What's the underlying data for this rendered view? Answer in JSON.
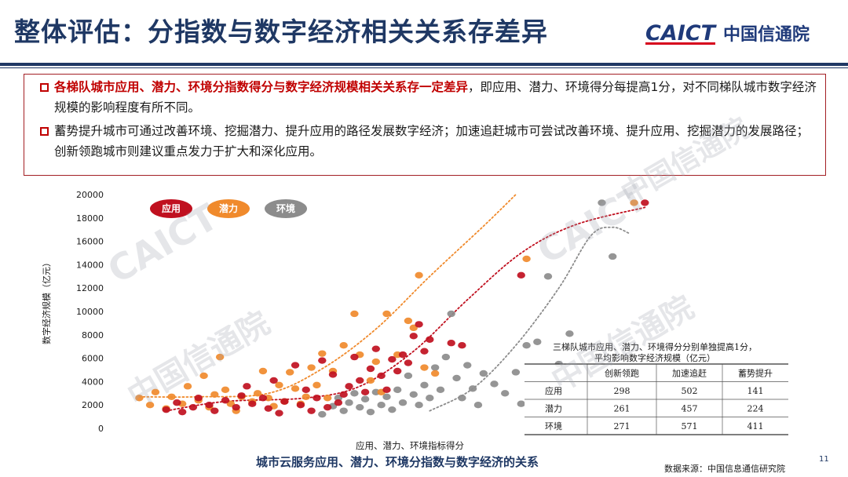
{
  "header": {
    "title": "整体评估：分指数与数字经济相关关系存差异",
    "logo_mark": "CAICT",
    "logo_name": "中国信通院"
  },
  "bullets": [
    {
      "highlight": "各梯队城市应用、潜力、环境分指数得分与数字经济规模相关关系存一定差异",
      "text": "，即应用、潜力、环境得分每提高1分，对不同梯队城市数字经济规模的影响程度有所不同。"
    },
    {
      "highlight": "",
      "text": "蓄势提升城市可通过改善环境、挖掘潜力、提升应用的路径发展数字经济；加速追赶城市可尝试改善环境、提升应用、挖掘潜力的发展路径；创新领跑城市则建议重点发力于扩大和深化应用。"
    }
  ],
  "chart_data": {
    "type": "scatter",
    "title": "城市云服务应用、潜力、环境分指数与数字经济的关系",
    "xlabel": "应用、潜力、环境指标得分",
    "ylabel": "数字经济规模（亿元）",
    "ylim": [
      0,
      20000
    ],
    "yticks": [
      0,
      2000,
      4000,
      6000,
      8000,
      10000,
      12000,
      14000,
      16000,
      18000,
      20000
    ],
    "xlim": [
      0,
      100
    ],
    "legend_position": "top-left",
    "grid": false,
    "series": [
      {
        "name": "应用",
        "color": "#c0101f",
        "points": [
          [
            9,
            1600
          ],
          [
            11,
            2200
          ],
          [
            12,
            1400
          ],
          [
            14,
            1800
          ],
          [
            15,
            2600
          ],
          [
            17,
            2000
          ],
          [
            18,
            1500
          ],
          [
            20,
            2400
          ],
          [
            22,
            1800
          ],
          [
            23,
            2800
          ],
          [
            24,
            3600
          ],
          [
            25,
            2100
          ],
          [
            27,
            2600
          ],
          [
            28,
            1700
          ],
          [
            29,
            4100
          ],
          [
            30,
            1300
          ],
          [
            31,
            2300
          ],
          [
            33,
            5400
          ],
          [
            34,
            2000
          ],
          [
            35,
            3300
          ],
          [
            36,
            1500
          ],
          [
            37,
            2600
          ],
          [
            38,
            5800
          ],
          [
            39,
            1800
          ],
          [
            40,
            4600
          ],
          [
            41,
            2200
          ],
          [
            42,
            2900
          ],
          [
            43,
            3600
          ],
          [
            44,
            6100
          ],
          [
            45,
            4100
          ],
          [
            46,
            3100
          ],
          [
            47,
            5100
          ],
          [
            48,
            6800
          ],
          [
            49,
            4500
          ],
          [
            50,
            3300
          ],
          [
            51,
            5900
          ],
          [
            52,
            4900
          ],
          [
            53,
            6300
          ],
          [
            54,
            5600
          ],
          [
            55,
            7900
          ],
          [
            56,
            8900
          ],
          [
            57,
            6600
          ],
          [
            58,
            7600
          ],
          [
            62,
            7300
          ],
          [
            64,
            7100
          ],
          [
            75,
            13100
          ],
          [
            98,
            19300
          ]
        ]
      },
      {
        "name": "潜力",
        "color": "#f08a2c",
        "points": [
          [
            4,
            2600
          ],
          [
            6,
            2000
          ],
          [
            7,
            3100
          ],
          [
            9,
            1700
          ],
          [
            10,
            2700
          ],
          [
            12,
            2100
          ],
          [
            13,
            3600
          ],
          [
            15,
            2400
          ],
          [
            16,
            4500
          ],
          [
            17,
            1800
          ],
          [
            18,
            2900
          ],
          [
            19,
            6100
          ],
          [
            20,
            3300
          ],
          [
            21,
            2100
          ],
          [
            22,
            1500
          ],
          [
            23,
            2700
          ],
          [
            25,
            2300
          ],
          [
            26,
            3000
          ],
          [
            27,
            4900
          ],
          [
            28,
            2600
          ],
          [
            29,
            1900
          ],
          [
            30,
            3700
          ],
          [
            31,
            2300
          ],
          [
            32,
            4800
          ],
          [
            33,
            3400
          ],
          [
            34,
            2100
          ],
          [
            35,
            2700
          ],
          [
            36,
            5200
          ],
          [
            37,
            3700
          ],
          [
            38,
            6400
          ],
          [
            39,
            2600
          ],
          [
            40,
            4900
          ],
          [
            42,
            7100
          ],
          [
            44,
            9800
          ],
          [
            45,
            6300
          ],
          [
            47,
            4100
          ],
          [
            48,
            5700
          ],
          [
            49,
            3100
          ],
          [
            50,
            9800
          ],
          [
            52,
            6300
          ],
          [
            54,
            9200
          ],
          [
            55,
            8600
          ],
          [
            56,
            13100
          ],
          [
            57,
            5200
          ],
          [
            59,
            4700
          ],
          [
            76,
            14500
          ],
          [
            96,
            19300
          ]
        ]
      },
      {
        "name": "环境",
        "color": "#8c8c8c",
        "points": [
          [
            38,
            1200
          ],
          [
            40,
            1900
          ],
          [
            41,
            2600
          ],
          [
            42,
            1500
          ],
          [
            43,
            2200
          ],
          [
            44,
            3000
          ],
          [
            45,
            1800
          ],
          [
            46,
            2500
          ],
          [
            47,
            1400
          ],
          [
            48,
            3100
          ],
          [
            49,
            2000
          ],
          [
            50,
            2700
          ],
          [
            51,
            1600
          ],
          [
            52,
            3300
          ],
          [
            53,
            2200
          ],
          [
            54,
            4500
          ],
          [
            55,
            2900
          ],
          [
            56,
            2000
          ],
          [
            57,
            3700
          ],
          [
            58,
            2600
          ],
          [
            59,
            5200
          ],
          [
            60,
            3300
          ],
          [
            61,
            6100
          ],
          [
            62,
            9800
          ],
          [
            63,
            4300
          ],
          [
            64,
            2600
          ],
          [
            65,
            5400
          ],
          [
            66,
            3400
          ],
          [
            67,
            2000
          ],
          [
            68,
            4700
          ],
          [
            70,
            3800
          ],
          [
            72,
            3000
          ],
          [
            74,
            4800
          ],
          [
            75,
            2100
          ],
          [
            76,
            7100
          ],
          [
            78,
            7400
          ],
          [
            80,
            13000
          ],
          [
            82,
            5500
          ],
          [
            84,
            8100
          ],
          [
            90,
            19300
          ],
          [
            92,
            14700
          ]
        ]
      }
    ],
    "trendlines": [
      {
        "series": "应用",
        "color": "#c0101f",
        "points": [
          [
            9,
            1500
          ],
          [
            20,
            2300
          ],
          [
            35,
            2600
          ],
          [
            45,
            3600
          ],
          [
            55,
            6600
          ],
          [
            65,
            11000
          ],
          [
            75,
            15000
          ],
          [
            85,
            17400
          ],
          [
            98,
            18900
          ]
        ]
      },
      {
        "series": "潜力",
        "color": "#f08a2c",
        "points": [
          [
            4,
            2700
          ],
          [
            15,
            2700
          ],
          [
            28,
            3000
          ],
          [
            38,
            5100
          ],
          [
            48,
            8500
          ],
          [
            58,
            13000
          ],
          [
            68,
            17300
          ],
          [
            74,
            20000
          ]
        ]
      },
      {
        "series": "环境",
        "color": "#8c8c8c",
        "points": [
          [
            58,
            1500
          ],
          [
            66,
            3400
          ],
          [
            74,
            7100
          ],
          [
            82,
            12000
          ],
          [
            88,
            16500
          ],
          [
            92,
            17200
          ],
          [
            95,
            16700
          ]
        ]
      }
    ],
    "table": {
      "title_line1": "三梯队城市应用、潜力、环境得分分别单独提高1分，",
      "title_line2": "平均影响数字经济规模（亿元）",
      "columns": [
        "",
        "创新领跑",
        "加速追赶",
        "蓄势提升"
      ],
      "rows": [
        [
          "应用",
          "298",
          "502",
          "141"
        ],
        [
          "潜力",
          "261",
          "457",
          "224"
        ],
        [
          "环境",
          "271",
          "571",
          "411"
        ]
      ]
    }
  },
  "footer": {
    "source": "数据来源：中国信息通信研究院",
    "page_number": "11"
  },
  "watermark": {
    "en": "CAICT",
    "cn": "中国信通院"
  }
}
